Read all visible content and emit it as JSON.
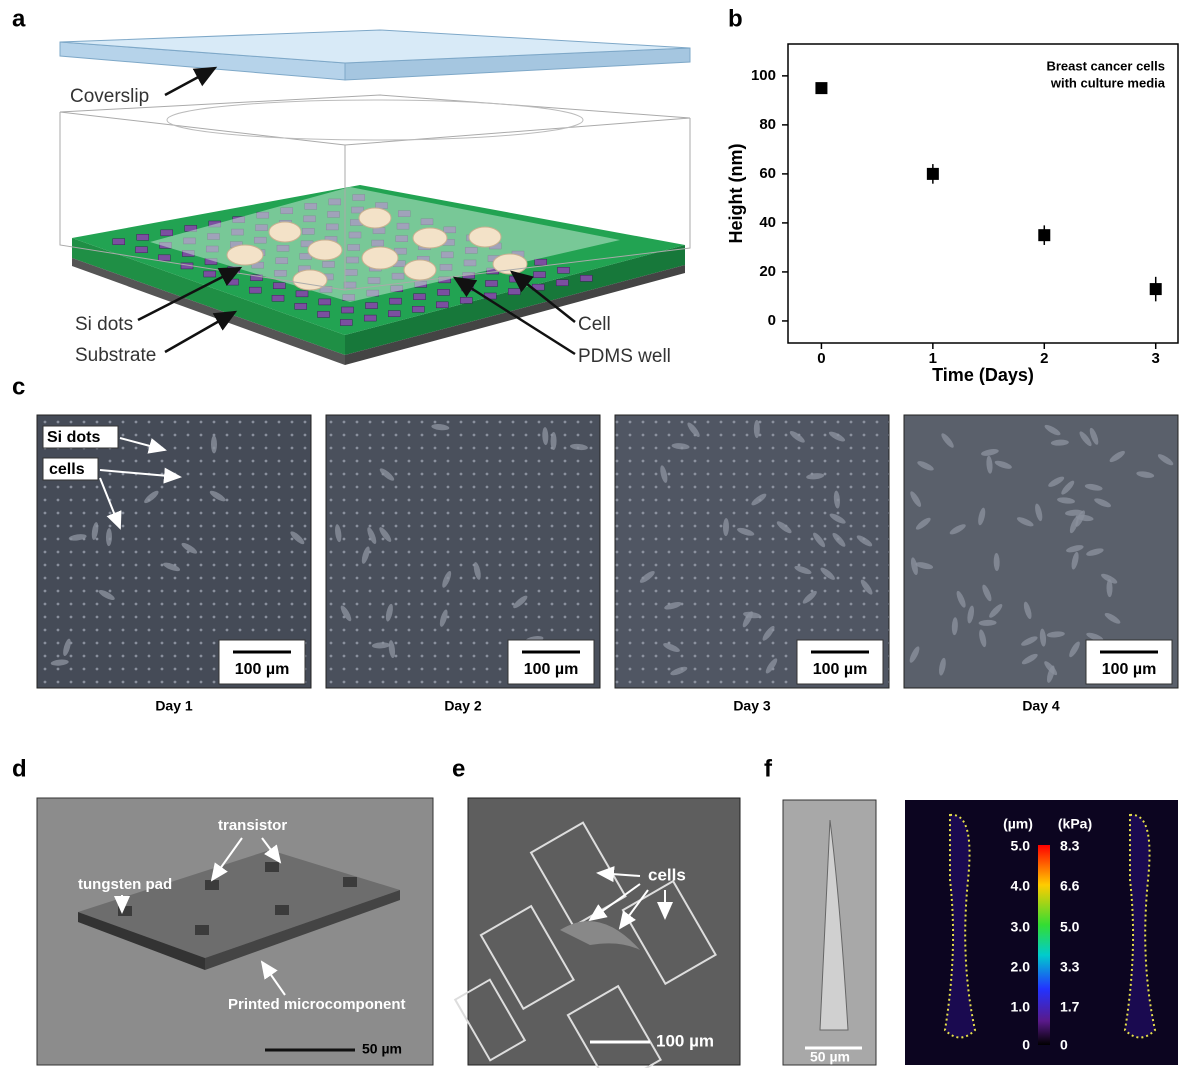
{
  "panel_labels": [
    "a",
    "b",
    "c",
    "d",
    "e",
    "f"
  ],
  "panel_a": {
    "coverslip": "Coverslip",
    "si_dots": "Si dots",
    "substrate": "Substrate",
    "cell": "Cell",
    "pdms_well": "PDMS well"
  },
  "chart_data": {
    "type": "scatter",
    "x": [
      0,
      1,
      2,
      3
    ],
    "values": [
      95,
      60,
      35,
      13
    ],
    "errors": [
      2,
      4,
      4,
      5
    ],
    "xlabel": "Time (Days)",
    "ylabel": "Height (nm)",
    "annotation": [
      "Breast cancer cells",
      "with culture media"
    ],
    "color": "#000000",
    "xlim": [
      -0.3,
      3.2
    ],
    "ylim": [
      -9,
      113
    ],
    "xticks": [
      0,
      1,
      2,
      3
    ],
    "yticks": [
      0,
      20,
      40,
      60,
      80,
      100
    ]
  },
  "panel_c": {
    "days": [
      "Day 1",
      "Day 2",
      "Day 3",
      "Day 4"
    ],
    "scale_bar": "100 µm",
    "si_dots": "Si dots",
    "cells": "cells"
  },
  "panel_d": {
    "transistor": "transistor",
    "tungsten_pad": "tungsten pad",
    "printed": "Printed microcomponent",
    "scale_bar": "50 µm"
  },
  "panel_e": {
    "cells": "cells",
    "scale_bar": "100 µm"
  },
  "panel_f": {
    "scale_bar": "50 µm",
    "unit_um": "(µm)",
    "unit_kpa": "(kPa)",
    "um_labels": [
      "5.0",
      "4.0",
      "3.0",
      "2.0",
      "1.0",
      "0"
    ],
    "kpa_labels": [
      "8.3",
      "6.6",
      "5.0",
      "3.3",
      "1.7",
      "0"
    ]
  }
}
